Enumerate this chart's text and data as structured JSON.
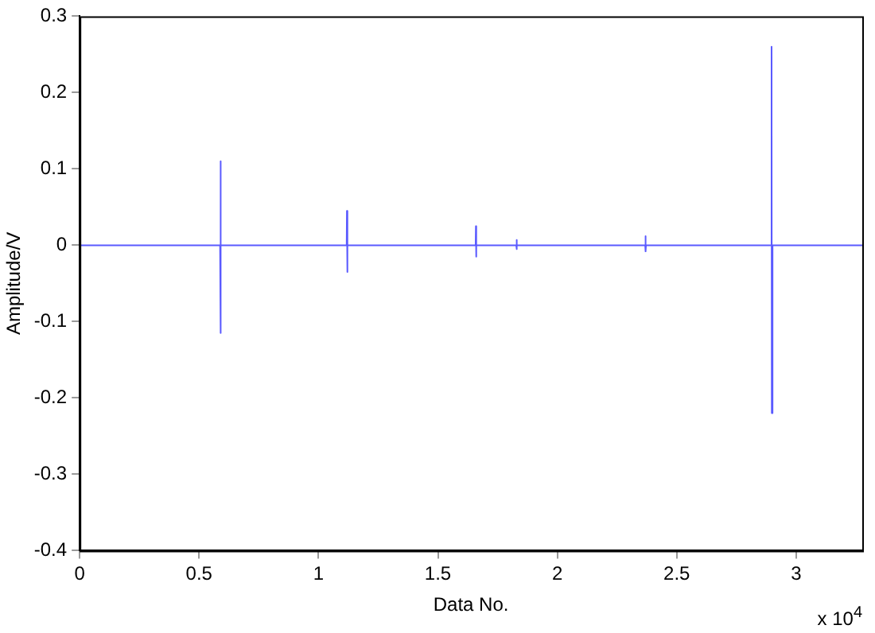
{
  "chart_data": {
    "type": "line",
    "xlabel": "Data No.",
    "ylabel": "Amplitude/V",
    "annotations": [
      "x 10$^{4}$"
    ],
    "series": [
      {
        "color": "#5a5aff",
        "x": [
          0,
          0.588,
          0.589,
          0.59,
          0.592,
          1.118,
          1.119,
          1.12,
          1.122,
          1.658,
          1.659,
          1.66,
          1.661,
          1.828,
          1.829,
          1.83,
          1.831,
          2.368,
          2.369,
          2.37,
          2.371,
          2.896,
          2.897,
          2.898,
          2.901,
          3.2768
        ],
        "values": [
          0,
          0,
          0.11,
          -0.115,
          0,
          0,
          0.045,
          -0.035,
          0,
          0,
          0.025,
          -0.015,
          0,
          0,
          0.007,
          -0.005,
          0,
          0,
          0.012,
          -0.008,
          0,
          0,
          0.26,
          -0.22,
          0,
          0
        ]
      }
    ],
    "xlim": [
      0,
      3.2768
    ],
    "xticks": [
      0,
      0.5,
      1,
      1.5,
      2,
      2.5,
      3
    ],
    "ylim": [
      -0.4,
      0.3
    ],
    "yticks": [
      -0.4,
      -0.3,
      -0.2,
      -0.1,
      0,
      0.1,
      0.2,
      0.3
    ],
    "grid": false,
    "legend": false,
    "marker": "none",
    "line_style": "solid"
  }
}
